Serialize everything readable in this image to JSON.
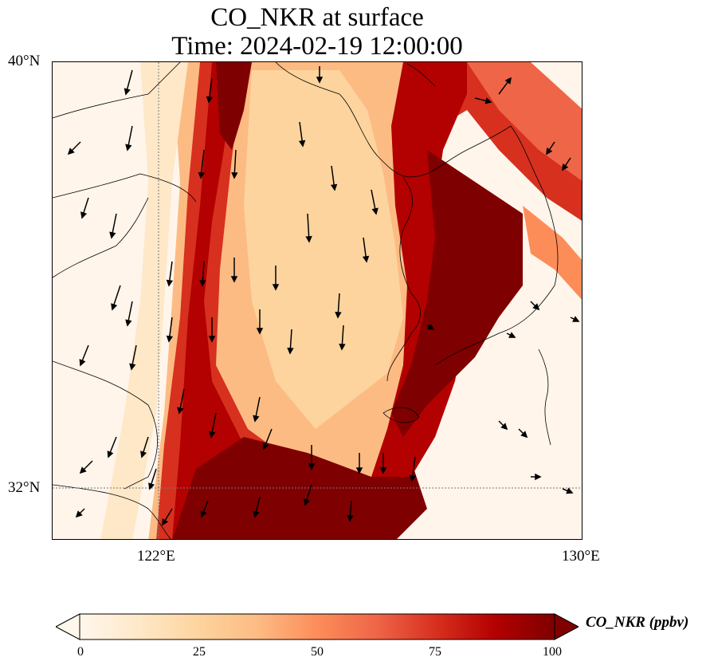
{
  "title": {
    "line1": "CO_NKR at surface",
    "line2": "Time: 2024-02-19 12:00:00"
  },
  "map": {
    "lon_range": [
      120.0,
      130.0
    ],
    "lat_range": [
      31.0,
      40.0
    ],
    "gridlines": {
      "lon": [
        122
      ],
      "lat": [
        32
      ],
      "style": "dotted"
    },
    "x_tick_labels": [
      "122°E",
      "130°E"
    ],
    "y_tick_labels": [
      "40°N",
      "32°N"
    ],
    "coastline_color": "#000000",
    "field_colormap": "OrRd",
    "wind_vectors": "black arrows"
  },
  "colorbar": {
    "label": "CO_NKR (ppbv)",
    "min": 0,
    "max": 100,
    "ticks": [
      "0",
      "25",
      "50",
      "75",
      "100"
    ],
    "extend": "both",
    "colors": [
      "#fff7ec",
      "#fee8c8",
      "#fdd49e",
      "#fdbb84",
      "#fc8d59",
      "#ef6548",
      "#d7301f",
      "#b30000",
      "#7f0000"
    ]
  }
}
